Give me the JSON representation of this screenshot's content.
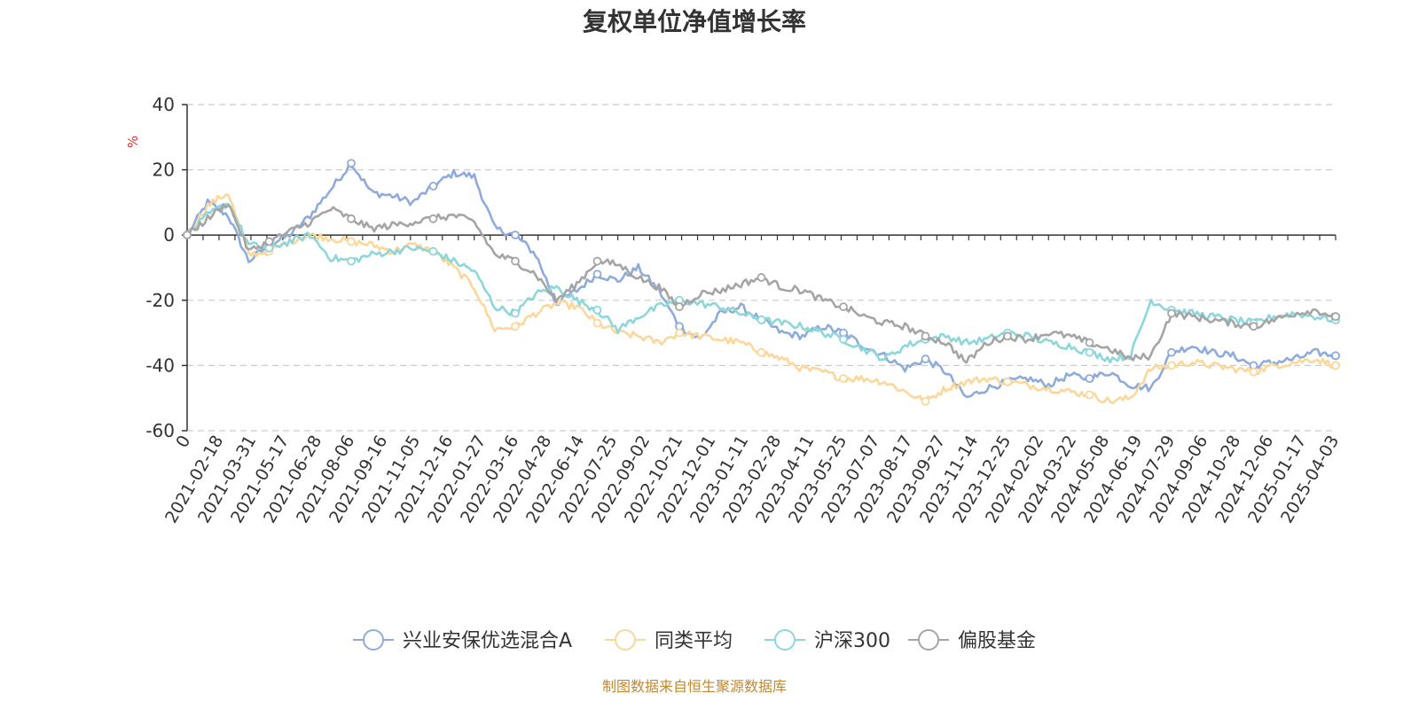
{
  "chart_data": {
    "type": "line",
    "title": "复权单位净值增长率",
    "ylabel": "%",
    "ylim": [
      -60,
      40
    ],
    "yticks": [
      40,
      20,
      0,
      -20,
      -40,
      -60
    ],
    "grid": true,
    "legend_position": "bottom",
    "source": "制图数据来自恒生聚源数据库",
    "x_tick_labels": [
      "0",
      "2021-02-18",
      "2021-03-31",
      "2021-05-17",
      "2021-06-28",
      "2021-08-06",
      "2021-09-16",
      "2021-11-05",
      "2021-12-16",
      "2022-01-27",
      "2022-03-16",
      "2022-04-28",
      "2022-06-14",
      "2022-07-25",
      "2022-09-02",
      "2022-10-21",
      "2022-12-01",
      "2023-01-11",
      "2023-02-28",
      "2023-04-11",
      "2023-05-25",
      "2023-07-07",
      "2023-08-17",
      "2023-09-27",
      "2023-11-14",
      "2023-12-25",
      "2024-02-02",
      "2024-03-22",
      "2024-05-08",
      "2024-06-19",
      "2024-07-29",
      "2024-09-06",
      "2024-10-28",
      "2024-12-06",
      "2025-01-17",
      "2025-04-03"
    ],
    "series": [
      {
        "name": "兴业安保优选混合A",
        "color": "#8eabdb",
        "values": [
          0,
          10,
          6,
          -8,
          -3,
          0,
          6,
          14,
          22,
          13,
          12,
          10,
          15,
          19,
          18,
          2,
          0,
          -6,
          -21,
          -17,
          -12,
          -14,
          -10,
          -17,
          -28,
          -32,
          -24,
          -22,
          -26,
          -30,
          -31,
          -28,
          -30,
          -34,
          -37,
          -41,
          -38,
          -42,
          -50,
          -47,
          -45,
          -44,
          -46,
          -43,
          -44,
          -42,
          -46,
          -47,
          -36,
          -34,
          -36,
          -37,
          -40,
          -39,
          -38,
          -36,
          -37
        ]
      },
      {
        "name": "同类平均",
        "color": "#fbd79a",
        "values": [
          0,
          9,
          13,
          -6,
          -5,
          -2,
          0,
          -1,
          -2,
          -3,
          -5,
          -3,
          -5,
          -10,
          -16,
          -29,
          -28,
          -24,
          -21,
          -22,
          -27,
          -30,
          -31,
          -33,
          -30,
          -31,
          -32,
          -33,
          -36,
          -38,
          -41,
          -42,
          -44,
          -44,
          -45,
          -48,
          -51,
          -47,
          -45,
          -44,
          -45,
          -46,
          -47,
          -48,
          -49,
          -51,
          -50,
          -41,
          -40,
          -39,
          -40,
          -41,
          -42,
          -40,
          -39,
          -38,
          -40
        ]
      },
      {
        "name": "沪深300",
        "color": "#8dd7db",
        "values": [
          0,
          6,
          10,
          -3,
          -4,
          -2,
          0,
          -7,
          -8,
          -6,
          -5,
          -4,
          -5,
          -8,
          -11,
          -22,
          -24,
          -18,
          -16,
          -20,
          -23,
          -29,
          -25,
          -22,
          -20,
          -21,
          -22,
          -24,
          -26,
          -27,
          -28,
          -30,
          -32,
          -35,
          -38,
          -34,
          -32,
          -31,
          -33,
          -32,
          -30,
          -31,
          -33,
          -34,
          -36,
          -38,
          -37,
          -20,
          -23,
          -24,
          -25,
          -26,
          -27,
          -25,
          -24,
          -25,
          -26
        ]
      },
      {
        "name": "偏股基金",
        "color": "#a5a5a5",
        "values": [
          0,
          5,
          10,
          -5,
          -2,
          1,
          4,
          8,
          5,
          2,
          3,
          4,
          5,
          6,
          4,
          -6,
          -8,
          -12,
          -20,
          -15,
          -8,
          -9,
          -13,
          -16,
          -22,
          -18,
          -17,
          -15,
          -13,
          -16,
          -17,
          -20,
          -22,
          -25,
          -27,
          -28,
          -31,
          -33,
          -39,
          -33,
          -31,
          -32,
          -30,
          -31,
          -33,
          -35,
          -38,
          -37,
          -24,
          -25,
          -26,
          -27,
          -28,
          -26,
          -24,
          -23,
          -25
        ]
      }
    ]
  }
}
